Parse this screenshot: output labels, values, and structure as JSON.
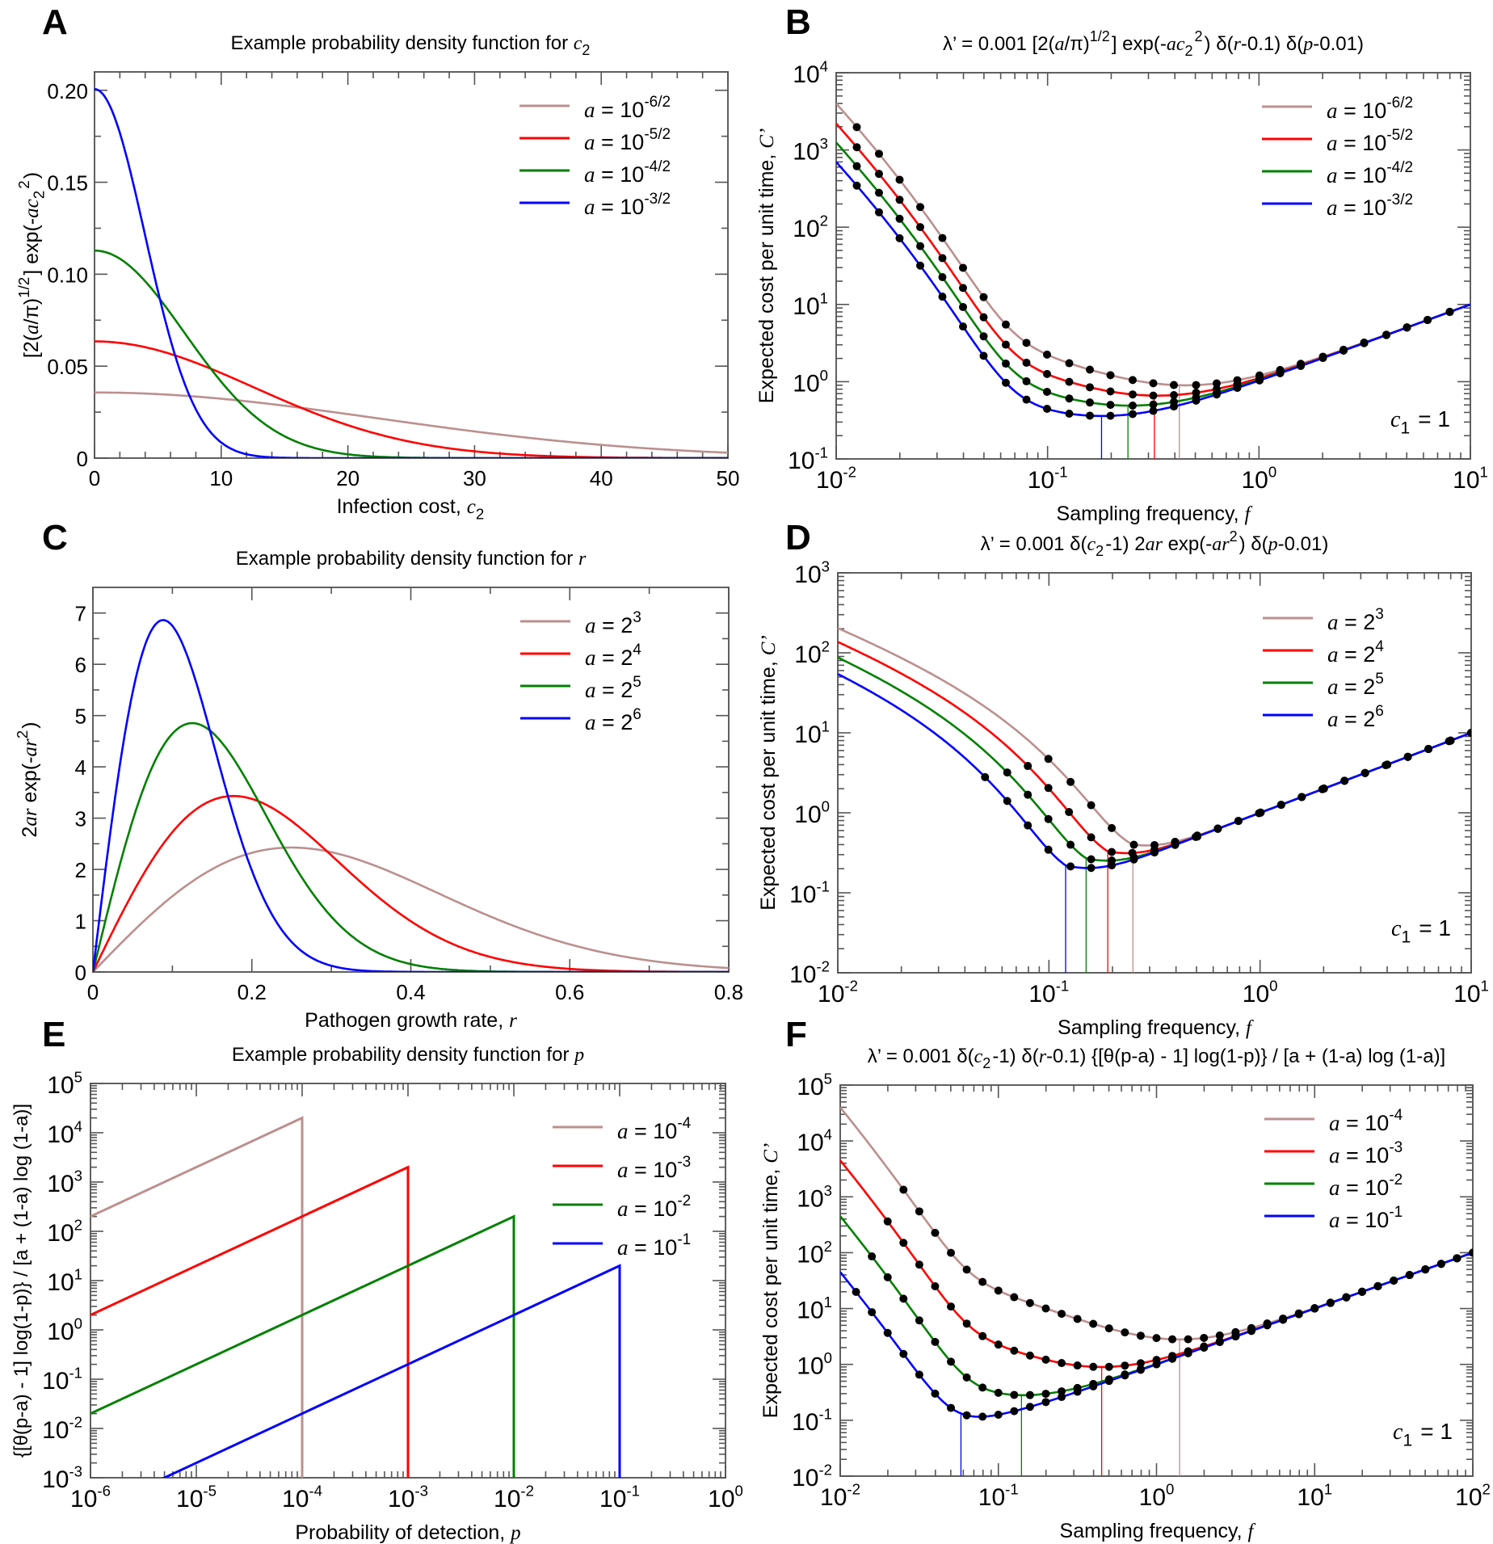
{
  "colors": {
    "a1": "#bc8f8f",
    "a2": "#ff0000",
    "a3": "#008000",
    "a4": "#0000ff",
    "dots": "#000000",
    "axis": "#606060"
  },
  "chart_data": [
    {
      "panel": "A",
      "type": "line",
      "title": "Example probability density function for c₂",
      "title_parts": [
        {
          "t": "Example probability density function for "
        },
        {
          "t": "c",
          "i": 1
        },
        {
          "t": "2",
          "sub": 1
        }
      ],
      "xlabel_parts": [
        {
          "t": "Infection cost, "
        },
        {
          "t": "c",
          "i": 1
        },
        {
          "t": "2",
          "sub": 1
        }
      ],
      "ylabel_parts": [
        {
          "t": "[2("
        },
        {
          "t": "a",
          "i": 1
        },
        {
          "t": "/π)"
        },
        {
          "t": "1/2",
          "sup": 1
        },
        {
          "t": "] exp(-"
        },
        {
          "t": "ac",
          "i": 1
        },
        {
          "t": "2",
          "sub": 1
        },
        {
          "t": "2",
          "sup": 1
        },
        {
          "t": ")"
        }
      ],
      "xscale": "linear",
      "yscale": "linear",
      "xlim": [
        0,
        50
      ],
      "ylim": [
        0,
        0.21
      ],
      "xticks": [
        0,
        10,
        20,
        30,
        40,
        50
      ],
      "xtick_labels": [
        "0",
        "10",
        "20",
        "30",
        "40",
        "50"
      ],
      "yticks": [
        0,
        0.05,
        0.1,
        0.15,
        0.2
      ],
      "ytick_labels": [
        "0",
        "0.05",
        "0.10",
        "0.15",
        "0.20"
      ],
      "legend_position": "top-right",
      "formula": "halfnormal",
      "series": [
        {
          "name": "a = 10^-6/2",
          "base": "10",
          "exp": "-6/2",
          "a": 0.001,
          "color": "#bc8f8f"
        },
        {
          "name": "a = 10^-5/2",
          "base": "10",
          "exp": "-5/2",
          "a": 0.0031623,
          "color": "#ff0000"
        },
        {
          "name": "a = 10^-4/2",
          "base": "10",
          "exp": "-4/2",
          "a": 0.01,
          "color": "#008000"
        },
        {
          "name": "a = 10^-3/2",
          "base": "10",
          "exp": "-3/2",
          "a": 0.031623,
          "color": "#0000ff"
        }
      ],
      "sample_points": {
        "x": [
          0,
          5,
          10,
          20,
          30,
          40,
          50
        ],
        "a=10^-6/2": [
          0.0357,
          0.0348,
          0.0323,
          0.0239,
          0.0145,
          0.0072,
          0.0029
        ],
        "a=10^-5/2": [
          0.0634,
          0.0588,
          0.0463,
          0.0179,
          0.0037,
          0.0004,
          0.0
        ],
        "a=10^-4/2": [
          0.1128,
          0.0879,
          0.0415,
          0.0021,
          0.0,
          0.0,
          0.0
        ],
        "a=10^-3/2": [
          0.2007,
          0.0907,
          0.0084,
          0.0,
          0.0,
          0.0,
          0.0
        ]
      }
    },
    {
      "panel": "B",
      "type": "line",
      "title": "λ' = 0.001 [2(a/π)^1/2] exp(-ac₂²) δ(r-0.1) δ(p-0.01)",
      "title_parts": [
        {
          "t": "λ’ = 0.001 [2("
        },
        {
          "t": "a",
          "i": 1
        },
        {
          "t": "/π)"
        },
        {
          "t": "1/2",
          "sup": 1
        },
        {
          "t": "] exp(-"
        },
        {
          "t": "ac",
          "i": 1
        },
        {
          "t": "2",
          "sub": 1
        },
        {
          "t": "2",
          "sup": 1
        },
        {
          "t": ") δ("
        },
        {
          "t": "r",
          "i": 1
        },
        {
          "t": "-0.1) δ("
        },
        {
          "t": "p",
          "i": 1
        },
        {
          "t": "-0.01)"
        }
      ],
      "xlabel_parts": [
        {
          "t": "Sampling frequency, "
        },
        {
          "t": "f",
          "i": 1
        }
      ],
      "ylabel_parts": [
        {
          "t": "Expected cost per unit time, "
        },
        {
          "t": "C’",
          "i": 1
        }
      ],
      "xscale": "log",
      "yscale": "log",
      "xlim": [
        0.01,
        10
      ],
      "ylim": [
        0.1,
        10000
      ],
      "xdec": [
        -2,
        -1,
        0,
        1
      ],
      "ydec": [
        -1,
        0,
        1,
        2,
        3,
        4
      ],
      "annotation": {
        "pre": "c",
        "sub": "1",
        "post": " = 1"
      },
      "legend_position": "top-right",
      "series": [
        {
          "name": "a = 10^-6/2",
          "base": "10",
          "exp": "-6/2",
          "color": "#bc8f8f",
          "C0": 4000,
          "m": 0.9,
          "dotfrom": 0.0126,
          "fopt": 0.42
        },
        {
          "name": "a = 10^-5/2",
          "base": "10",
          "exp": "-5/2",
          "color": "#ff0000",
          "C0": 2200,
          "m": 0.66,
          "dotfrom": 0.0126,
          "fopt": 0.32
        },
        {
          "name": "a = 10^-4/2",
          "base": "10",
          "exp": "-4/2",
          "color": "#008000",
          "C0": 1250,
          "m": 0.49,
          "dotfrom": 0.0126,
          "fopt": 0.24
        },
        {
          "name": "a = 10^-3/2",
          "base": "10",
          "exp": "-3/2",
          "color": "#0000ff",
          "C0": 700,
          "m": 0.36,
          "dotfrom": 0.0126,
          "fopt": 0.18
        }
      ],
      "asymptote": "C = f (slope 1 at high f, C(10) = 10)"
    },
    {
      "panel": "C",
      "type": "line",
      "title": "Example probability density function for r",
      "title_parts": [
        {
          "t": "Example probability density function for "
        },
        {
          "t": "r",
          "i": 1
        }
      ],
      "xlabel_parts": [
        {
          "t": "Pathogen growth rate, "
        },
        {
          "t": "r",
          "i": 1
        }
      ],
      "ylabel_parts": [
        {
          "t": "2"
        },
        {
          "t": "ar",
          "i": 1
        },
        {
          "t": " exp(-"
        },
        {
          "t": "ar",
          "i": 1
        },
        {
          "t": "2",
          "sup": 1
        },
        {
          "t": ")"
        }
      ],
      "xscale": "linear",
      "yscale": "linear",
      "xlim": [
        0,
        0.8
      ],
      "ylim": [
        0,
        7.5
      ],
      "xticks": [
        0,
        0.2,
        0.4,
        0.6,
        0.8
      ],
      "xtick_labels": [
        "0",
        "0.2",
        "0.4",
        "0.6",
        "0.8"
      ],
      "yticks": [
        0,
        1,
        2,
        3,
        4,
        5,
        6,
        7
      ],
      "ytick_labels": [
        "0",
        "1",
        "2",
        "3",
        "4",
        "5",
        "6",
        "7"
      ],
      "legend_position": "top-right",
      "formula": "rayleigh",
      "series": [
        {
          "name": "a = 2^3",
          "base": "2",
          "exp": "3",
          "a": 8,
          "color": "#bc8f8f"
        },
        {
          "name": "a = 2^4",
          "base": "2",
          "exp": "4",
          "a": 16,
          "color": "#ff0000"
        },
        {
          "name": "a = 2^5",
          "base": "2",
          "exp": "5",
          "a": 32,
          "color": "#008000"
        },
        {
          "name": "a = 2^6",
          "base": "2",
          "exp": "6",
          "a": 64,
          "color": "#0000ff"
        }
      ],
      "peaks": {
        "a=2^3": [
          0.25,
          2.43
        ],
        "a=2^4": [
          0.177,
          3.43
        ],
        "a=2^5": [
          0.125,
          4.85
        ],
        "a=2^6": [
          0.088,
          6.86
        ]
      }
    },
    {
      "panel": "D",
      "type": "line",
      "title": "λ' = 0.001 δ(c₂-1) 2ar exp(-ar²) δ(p-0.01)",
      "title_parts": [
        {
          "t": "λ’ = 0.001 δ("
        },
        {
          "t": "c",
          "i": 1
        },
        {
          "t": "2",
          "sub": 1
        },
        {
          "t": "-1) 2"
        },
        {
          "t": "ar",
          "i": 1
        },
        {
          "t": " exp(-"
        },
        {
          "t": "ar",
          "i": 1
        },
        {
          "t": "2",
          "sup": 1
        },
        {
          "t": ") δ("
        },
        {
          "t": "p",
          "i": 1
        },
        {
          "t": "-0.01)"
        }
      ],
      "xlabel_parts": [
        {
          "t": "Sampling frequency, "
        },
        {
          "t": "f",
          "i": 1
        }
      ],
      "ylabel_parts": [
        {
          "t": "Expected cost per unit time, "
        },
        {
          "t": "C’",
          "i": 1
        }
      ],
      "xscale": "log",
      "yscale": "log",
      "xlim": [
        0.01,
        10
      ],
      "ylim": [
        0.01,
        1000
      ],
      "xdec": [
        -2,
        -1,
        0,
        1
      ],
      "ydec": [
        -2,
        -1,
        0,
        1,
        2,
        3
      ],
      "annotation": {
        "pre": "c",
        "sub": "1",
        "post": " = 1"
      },
      "legend_position": "top-right",
      "series": [
        {
          "name": "a = 2^3",
          "base": "2",
          "exp": "3",
          "color": "#bc8f8f",
          "s": 8,
          "fopt": 0.25,
          "Cmin": 0.4,
          "dotfrom": 0.1
        },
        {
          "name": "a = 2^4",
          "base": "2",
          "exp": "4",
          "color": "#ff0000",
          "s": 16,
          "fopt": 0.19,
          "Cmin": 0.33,
          "dotfrom": 0.079
        },
        {
          "name": "a = 2^5",
          "base": "2",
          "exp": "5",
          "color": "#008000",
          "s": 32,
          "fopt": 0.15,
          "Cmin": 0.27,
          "dotfrom": 0.063
        },
        {
          "name": "a = 2^6",
          "base": "2",
          "exp": "6",
          "color": "#0000ff",
          "s": 64,
          "fopt": 0.12,
          "Cmin": 0.22,
          "dotfrom": 0.05
        }
      ]
    },
    {
      "panel": "E",
      "type": "line",
      "title": "Example probability density function for p",
      "title_parts": [
        {
          "t": "Example probability density function for "
        },
        {
          "t": "p",
          "i": 1
        }
      ],
      "xlabel_parts": [
        {
          "t": "Probability of detection, "
        },
        {
          "t": "p",
          "i": 1
        }
      ],
      "ylabel_parts": [
        {
          "t": "{[θ(p-a) - 1] log(1-p)} / [a + (1-a) log (1-a)]"
        }
      ],
      "xscale": "log",
      "yscale": "log",
      "xlim": [
        1e-06,
        1
      ],
      "ylim": [
        0.001,
        100000
      ],
      "xdec": [
        -6,
        -5,
        -4,
        -3,
        -2,
        -1,
        0
      ],
      "ydec": [
        -3,
        -2,
        -1,
        0,
        1,
        2,
        3,
        4,
        5
      ],
      "legend_position": "top-right",
      "series": [
        {
          "name": "a = 10^-4",
          "base": "10",
          "exp": "-4",
          "a": 0.0001,
          "color": "#bc8f8f",
          "y_at_p1e-6": 200,
          "cutoff": 0.0001,
          "y_at_cutoff": 20000
        },
        {
          "name": "a = 10^-3",
          "base": "10",
          "exp": "-3",
          "a": 0.001,
          "color": "#ff0000",
          "y_at_p1e-6": 2,
          "cutoff": 0.001,
          "y_at_cutoff": 2000
        },
        {
          "name": "a = 10^-2",
          "base": "10",
          "exp": "-2",
          "a": 0.01,
          "color": "#008000",
          "y_at_p1e-6": 0.02,
          "cutoff": 0.01,
          "y_at_cutoff": 200
        },
        {
          "name": "a = 10^-1",
          "base": "10",
          "exp": "-1",
          "a": 0.1,
          "color": "#0000ff",
          "y_at_p1e-6": 0.0002,
          "cutoff": 0.1,
          "y_at_cutoff": 20
        }
      ]
    },
    {
      "panel": "F",
      "type": "line",
      "title": "λ' = 0.001 δ(c₂-1) δ(r-0.1) {[θ(p-a) - 1] log(1-p)} / [a + (1-a) log (1-a)]",
      "title_parts": [
        {
          "t": "λ’ = 0.001 δ("
        },
        {
          "t": "c",
          "i": 1
        },
        {
          "t": "2",
          "sub": 1
        },
        {
          "t": "-1) δ("
        },
        {
          "t": "r",
          "i": 1
        },
        {
          "t": "-0.1) {[θ(p-a) - 1] log(1-p)} / [a + (1-a) log (1-a)]"
        }
      ],
      "xlabel_parts": [
        {
          "t": "Sampling frequency, "
        },
        {
          "t": "f",
          "i": 1
        }
      ],
      "ylabel_parts": [
        {
          "t": "Expected cost per unit time, "
        },
        {
          "t": "C’",
          "i": 1
        }
      ],
      "xscale": "log",
      "yscale": "log",
      "xlim": [
        0.01,
        100
      ],
      "ylim": [
        0.01,
        100000
      ],
      "xdec": [
        -2,
        -1,
        0,
        1,
        2
      ],
      "ydec": [
        -2,
        -1,
        0,
        1,
        2,
        3,
        4,
        5
      ],
      "annotation": {
        "pre": "c",
        "sub": "1",
        "post": " = 1"
      },
      "legend_position": "top-right",
      "series": [
        {
          "name": "a = 10^-4",
          "base": "10",
          "exp": "-4",
          "color": "#bc8f8f",
          "C0": 40000,
          "m": 2.8,
          "fopt": 1.4,
          "dotfrom": 0.025
        },
        {
          "name": "a = 10^-3",
          "base": "10",
          "exp": "-3",
          "color": "#ff0000",
          "C0": 4500,
          "m": 0.9,
          "fopt": 0.45,
          "dotfrom": 0.02
        },
        {
          "name": "a = 10^-2",
          "base": "10",
          "exp": "-2",
          "color": "#008000",
          "C0": 450,
          "m": 0.28,
          "fopt": 0.14,
          "dotfrom": 0.016
        },
        {
          "name": "a = 10^-1",
          "base": "10",
          "exp": "-1",
          "color": "#0000ff",
          "C0": 45,
          "m": 0.1,
          "fopt": 0.058,
          "dotfrom": 0.0126
        }
      ]
    }
  ]
}
